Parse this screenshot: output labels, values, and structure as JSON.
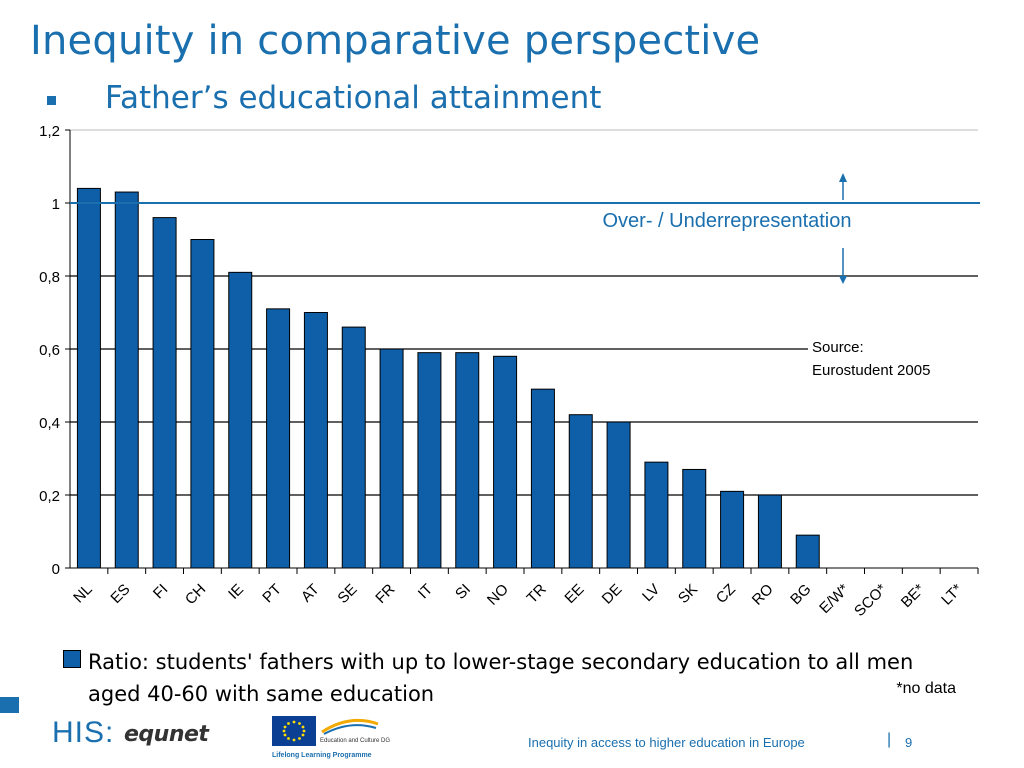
{
  "slide": {
    "title": "Inequity in comparative perspective",
    "subtitle": "Father’s educational attainment",
    "legend_text": "Ratio: students' fathers with up to lower-stage secondary education to all men aged 40-60 with same education",
    "footnote": "*no data",
    "annotation": "Over- / Underrepresentation",
    "source_line1": "Source:",
    "source_line2": "Eurostudent 2005",
    "footer_text": "Inequity in access to higher education in Europe",
    "footer_sep": "|",
    "page_number": "9",
    "logos": {
      "his": "HIS",
      "equnet": "equnet",
      "lifelong": "Lifelong Learning Programme",
      "dg": "Education and Culture DG"
    }
  },
  "colors": {
    "bar": "#0f5fa8",
    "bar_border": "#000000",
    "accent": "#1a6fae",
    "reference_line": "#1a6fae"
  },
  "chart_data": {
    "type": "bar",
    "categories": [
      "NL",
      "ES",
      "FI",
      "CH",
      "IE",
      "PT",
      "AT",
      "SE",
      "FR",
      "IT",
      "SI",
      "NO",
      "TR",
      "EE",
      "DE",
      "LV",
      "SK",
      "CZ",
      "RO",
      "BG",
      "E/W*",
      "SCO*",
      "BE*",
      "LT*"
    ],
    "series": [
      {
        "name": "Ratio: students' fathers with up to lower-stage secondary education to all men aged 40-60 with same education",
        "values": [
          1.04,
          1.03,
          0.96,
          0.9,
          0.81,
          0.71,
          0.7,
          0.66,
          0.6,
          0.59,
          0.59,
          0.58,
          0.49,
          0.42,
          0.4,
          0.29,
          0.27,
          0.21,
          0.2,
          0.09,
          null,
          null,
          null,
          null
        ]
      }
    ],
    "ylim": [
      0,
      1.2
    ],
    "yticks": [
      "0",
      "0,2",
      "0,4",
      "0,6",
      "0,8",
      "1",
      "1,2"
    ],
    "reference_line": 1,
    "grid": true,
    "legend_position": "bottom"
  }
}
